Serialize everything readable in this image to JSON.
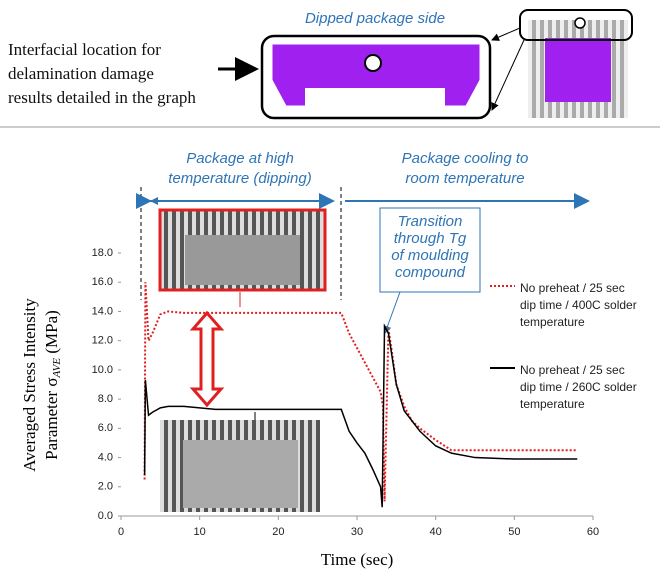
{
  "figure_header": {
    "lines": [
      "Interfacial location for",
      "delamination damage",
      "results detailed in the graph"
    ],
    "diagram_label": "Dipped package side"
  },
  "chart_data": {
    "type": "line",
    "x_label": "Time (sec)",
    "y_label": {
      "line1": "Averaged Stress Intensity",
      "line2": [
        "Parameter σ",
        "AVE",
        " (MPa)"
      ]
    },
    "xlim": [
      0,
      60
    ],
    "xticks": [
      0,
      10,
      20,
      30,
      40,
      50,
      60
    ],
    "ylim": [
      0,
      18
    ],
    "yticks": [
      {
        "value": 0,
        "label": "0.0"
      },
      {
        "value": 2,
        "label": "2.0"
      },
      {
        "value": 4,
        "label": "4.0"
      },
      {
        "value": 6,
        "label": "6.0"
      },
      {
        "value": 8,
        "label": "8.0"
      },
      {
        "value": 10,
        "label": "10.0"
      },
      {
        "value": 12,
        "label": "12.0"
      },
      {
        "value": 14,
        "label": "14.0"
      },
      {
        "value": 16,
        "label": "16.0"
      },
      {
        "value": 18,
        "label": "18.0"
      }
    ],
    "annotations": {
      "heating": [
        "Package at high",
        "temperature (dipping)"
      ],
      "cooling": [
        "Package cooling to",
        "room temperature"
      ],
      "transition": [
        "Transition",
        "through Tg",
        "of moulding",
        "compound"
      ]
    },
    "series": [
      {
        "name": "No preheat / 25 sec dip time / 400C solder temperature",
        "color": "#e02020",
        "style": "dotted",
        "x": [
          3,
          3.1,
          3.5,
          4,
          5,
          6,
          8,
          12,
          20,
          28,
          29,
          30,
          31,
          32,
          33,
          33.3,
          33.5,
          34,
          34.5,
          35,
          36,
          37,
          38,
          40,
          42,
          45,
          58
        ],
        "values": [
          2.5,
          16,
          12,
          12.5,
          13.8,
          14.0,
          13.9,
          13.9,
          13.9,
          13.9,
          12.5,
          11.5,
          10.5,
          9.5,
          8.5,
          7.5,
          1.0,
          12.8,
          11.0,
          9.0,
          7.5,
          6.5,
          6.0,
          5.2,
          4.5,
          4.5,
          4.5
        ]
      },
      {
        "name": "No preheat / 25 sec dip time / 260C solder temperature",
        "color": "#000000",
        "style": "solid",
        "x": [
          3,
          3.1,
          3.5,
          4,
          5,
          6,
          8,
          12,
          20,
          28,
          29,
          30,
          31,
          32,
          33,
          33.2,
          33.5,
          34,
          35,
          36,
          38,
          40,
          42,
          45,
          50,
          58
        ],
        "values": [
          2.8,
          9.3,
          6.9,
          7.1,
          7.4,
          7.5,
          7.5,
          7.3,
          7.3,
          7.3,
          5.8,
          5.0,
          4.3,
          3.2,
          2.0,
          0.6,
          13.0,
          12.5,
          9.0,
          7.2,
          5.8,
          4.8,
          4.3,
          4.0,
          3.9,
          3.9
        ]
      }
    ]
  }
}
